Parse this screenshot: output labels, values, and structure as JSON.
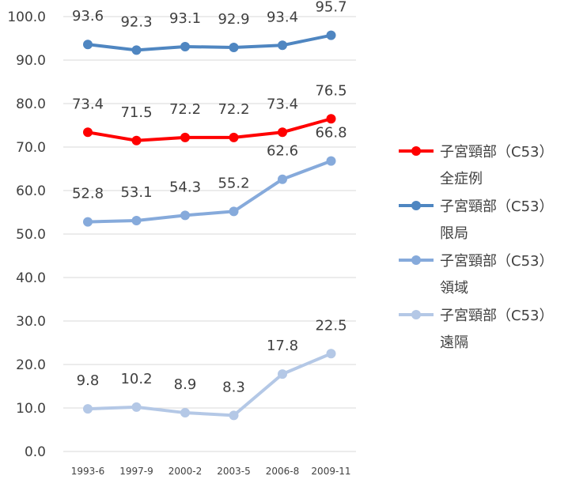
{
  "chart_data": {
    "type": "line",
    "title": "",
    "xlabel": "",
    "ylabel": "",
    "categories": [
      "1993-6",
      "1997-9",
      "2000-2",
      "2003-5",
      "2006-8",
      "2009-11"
    ],
    "ylim": [
      0,
      100
    ],
    "yticks": [
      "0.0",
      "10.0",
      "20.0",
      "30.0",
      "40.0",
      "50.0",
      "60.0",
      "70.0",
      "80.0",
      "90.0",
      "100.0"
    ],
    "grid": true,
    "legend_position": "right",
    "series": [
      {
        "name": "子宮頸部（C53）全症例",
        "legend_lines": [
          "子宮頸部（C53）",
          "全症例"
        ],
        "color": "#ff0000",
        "values": [
          73.4,
          71.5,
          72.2,
          72.2,
          73.4,
          76.5
        ],
        "labels": [
          "73.4",
          "71.5",
          "72.2",
          "72.2",
          "73.4",
          "76.5"
        ]
      },
      {
        "name": "子宮頸部（C53）限局",
        "legend_lines": [
          "子宮頸部（C53）",
          "限局"
        ],
        "color": "#4f86c1",
        "values": [
          93.6,
          92.3,
          93.1,
          92.9,
          93.4,
          95.7
        ],
        "labels": [
          "93.6",
          "92.3",
          "93.1",
          "92.9",
          "93.4",
          "95.7"
        ]
      },
      {
        "name": "子宮頸部（C53）領域",
        "legend_lines": [
          "子宮頸部（C53）",
          "領域"
        ],
        "color": "#86aadb",
        "values": [
          52.8,
          53.1,
          54.3,
          55.2,
          62.6,
          66.8
        ],
        "labels": [
          "52.8",
          "53.1",
          "54.3",
          "55.2",
          "62.6",
          "66.8"
        ]
      },
      {
        "name": "子宮頸部（C53）遠隔",
        "legend_lines": [
          "子宮頸部（C53）",
          "遠隔"
        ],
        "color": "#b4c8e6",
        "values": [
          9.8,
          10.2,
          8.9,
          8.3,
          17.8,
          22.5
        ],
        "labels": [
          "9.8",
          "10.2",
          "8.9",
          "8.3",
          "17.8",
          "22.5"
        ]
      }
    ]
  }
}
